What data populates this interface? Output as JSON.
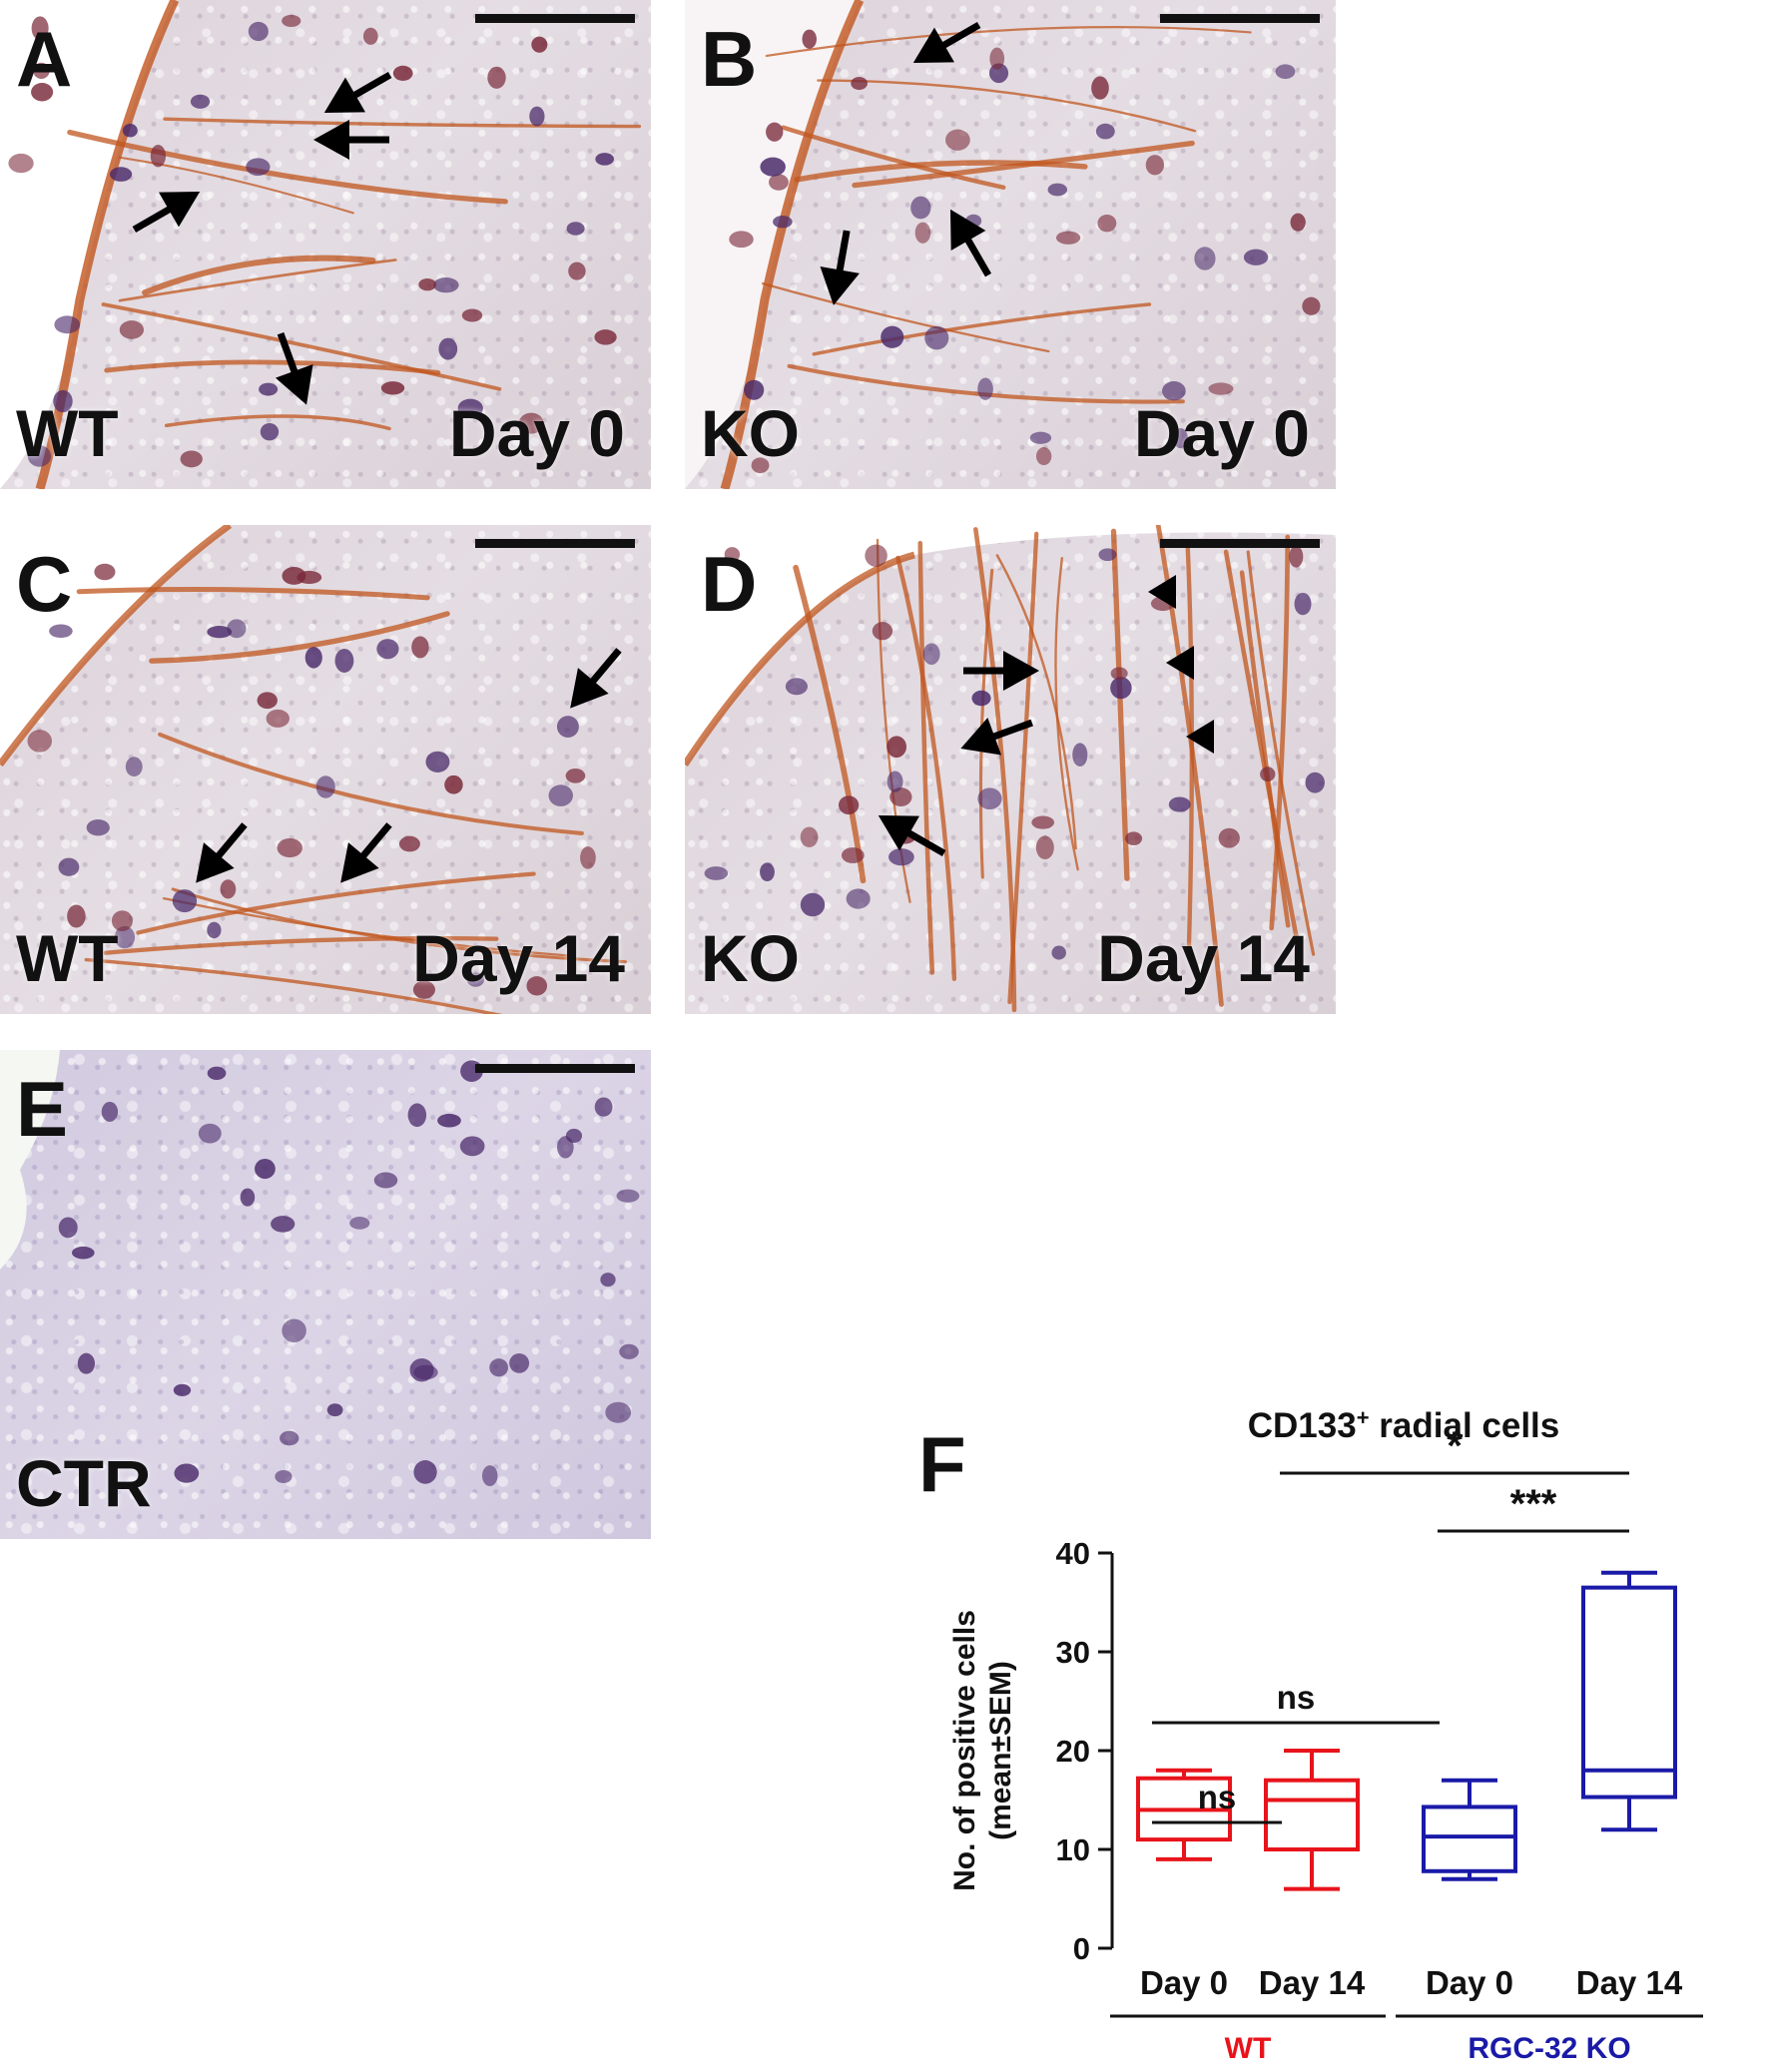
{
  "panels": [
    {
      "id": "A",
      "letter": "A",
      "group": "WT",
      "day": "Day 0",
      "stain": "brown"
    },
    {
      "id": "B",
      "letter": "B",
      "group": "KO",
      "day": "Day 0",
      "stain": "brown"
    },
    {
      "id": "C",
      "letter": "C",
      "group": "WT",
      "day": "Day 14",
      "stain": "brown"
    },
    {
      "id": "D",
      "letter": "D",
      "group": "KO",
      "day": "Day 14",
      "stain": "brown"
    },
    {
      "id": "E",
      "letter": "E",
      "group": "CTR",
      "day": "",
      "stain": "purple"
    }
  ],
  "panelF": {
    "letter": "F"
  },
  "colors": {
    "wt": "#e8141b",
    "ko": "#1a1aa8",
    "axis": "#111111",
    "dab": "#c0551e",
    "nucleus": "#4a2a6a"
  },
  "chart_data": {
    "type": "box",
    "title": "CD133⁺ radial cells",
    "title_main": "CD133",
    "title_sup": "+",
    "title_rest": " radial cells",
    "ylabel_line1": "No. of positive cells",
    "ylabel_line2": "(mean±SEM)",
    "ylim": [
      0,
      40
    ],
    "yticks": [
      "0",
      "10",
      "20",
      "30",
      "40"
    ],
    "categories": [
      "Day 0",
      "Day 14",
      "Day 0",
      "Day 14"
    ],
    "groups": [
      {
        "name": "WT",
        "color": "#e8141b",
        "categories": [
          0,
          1
        ]
      },
      {
        "name": "RGC-32 KO",
        "color": "#1a1aa8",
        "categories": [
          2,
          3
        ]
      }
    ],
    "boxes": [
      {
        "category": "Day 0",
        "group": "WT",
        "min": 9,
        "q1": 11,
        "median": 14,
        "q3": 17.2,
        "max": 18
      },
      {
        "category": "Day 14",
        "group": "WT",
        "min": 6,
        "q1": 10,
        "median": 15,
        "q3": 17,
        "max": 20
      },
      {
        "category": "Day 0",
        "group": "RGC-32 KO",
        "min": 7,
        "q1": 7.8,
        "median": 11.3,
        "q3": 14.3,
        "max": 17
      },
      {
        "category": "Day 14",
        "group": "RGC-32 KO",
        "min": 12,
        "q1": 15.3,
        "median": 18,
        "q3": 36.5,
        "max": 38
      }
    ],
    "significance": [
      {
        "from": 0,
        "to": 1,
        "label": "ns"
      },
      {
        "from": 0,
        "to": 2,
        "label": "ns"
      },
      {
        "from": 2,
        "to": 3,
        "label": "***"
      },
      {
        "from": 1,
        "to": 3,
        "label": "*"
      }
    ]
  }
}
